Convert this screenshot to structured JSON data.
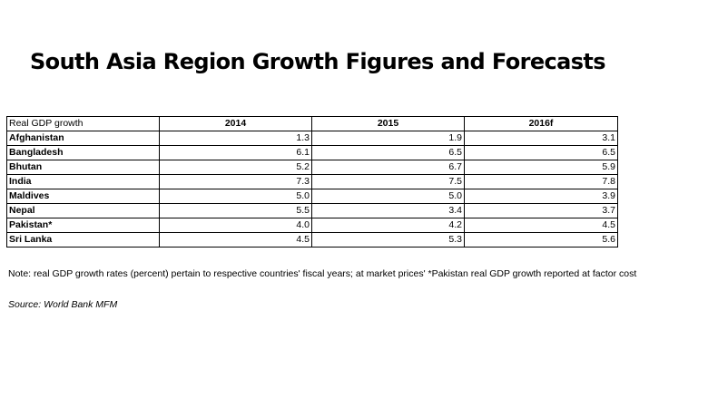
{
  "title": "South Asia Region Growth Figures and Forecasts",
  "chart_data": {
    "type": "table",
    "title": "South Asia Region Growth Figures and Forecasts",
    "corner_label": "Real GDP growth",
    "columns": [
      "2014",
      "2015",
      "2016f"
    ],
    "rows": [
      {
        "country": "Afghanistan",
        "values": [
          "1.3",
          "1.9",
          "3.1"
        ]
      },
      {
        "country": "Bangladesh",
        "values": [
          "6.1",
          "6.5",
          "6.5"
        ]
      },
      {
        "country": "Bhutan",
        "values": [
          "5.2",
          "6.7",
          "5.9"
        ]
      },
      {
        "country": "India",
        "values": [
          "7.3",
          "7.5",
          "7.8"
        ]
      },
      {
        "country": "Maldives",
        "values": [
          "5.0",
          "5.0",
          "3.9"
        ]
      },
      {
        "country": "Nepal",
        "values": [
          "5.5",
          "3.4",
          "3.7"
        ]
      },
      {
        "country": "Pakistan*",
        "values": [
          "4.0",
          "4.2",
          "4.5"
        ]
      },
      {
        "country": "Sri Lanka",
        "values": [
          "4.5",
          "5.3",
          "5.6"
        ]
      }
    ]
  },
  "note": "Note: real GDP growth rates (percent) pertain to respective countries' fiscal years; at market prices' *Pakistan real GDP growth reported at factor cost",
  "source": "Source: World Bank MFM"
}
